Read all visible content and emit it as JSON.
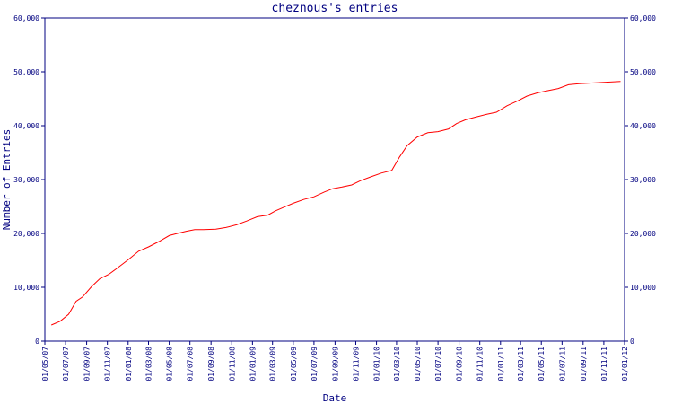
{
  "chart_data": {
    "type": "line",
    "title": "cheznous's entries",
    "xlabel": "Date",
    "ylabel": "Number of Entries",
    "ylim": [
      0,
      60000
    ],
    "y_ticks": [
      "0",
      "10,000",
      "20,000",
      "30,000",
      "40,000",
      "50,000",
      "60,000"
    ],
    "x_ticks": [
      "01/05/07",
      "01/07/07",
      "01/09/07",
      "01/11/07",
      "01/01/08",
      "01/03/08",
      "01/05/08",
      "01/07/08",
      "01/09/08",
      "01/11/08",
      "01/01/09",
      "01/03/09",
      "01/05/09",
      "01/07/09",
      "01/09/09",
      "01/11/09",
      "01/01/10",
      "01/03/10",
      "01/05/10",
      "01/07/10",
      "01/09/10",
      "01/11/10",
      "01/01/11",
      "01/03/11",
      "01/05/11",
      "01/07/11",
      "01/09/11",
      "01/11/11",
      "01/01/12"
    ],
    "grid": false,
    "axis_color": "#000080",
    "series": [
      {
        "color": "#ff0000",
        "x": [
          "2007-05-20",
          "2007-06-15",
          "2007-07-10",
          "2007-08-01",
          "2007-08-20",
          "2007-09-15",
          "2007-10-10",
          "2007-11-05",
          "2007-12-01",
          "2008-01-01",
          "2008-02-01",
          "2008-03-01",
          "2008-04-01",
          "2008-05-01",
          "2008-05-25",
          "2008-06-20",
          "2008-07-15",
          "2008-08-10",
          "2008-09-15",
          "2008-10-15",
          "2008-11-15",
          "2008-12-15",
          "2009-01-15",
          "2009-02-15",
          "2009-03-10",
          "2009-04-05",
          "2009-05-01",
          "2009-06-01",
          "2009-07-01",
          "2009-08-01",
          "2009-08-25",
          "2009-09-20",
          "2009-10-20",
          "2009-11-15",
          "2009-12-15",
          "2010-01-15",
          "2010-02-15",
          "2010-03-10",
          "2010-04-01",
          "2010-05-01",
          "2010-06-01",
          "2010-07-01",
          "2010-08-01",
          "2010-08-25",
          "2010-09-20",
          "2010-10-20",
          "2010-11-20",
          "2010-12-20",
          "2011-01-20",
          "2011-02-20",
          "2011-03-20",
          "2011-04-20",
          "2011-05-20",
          "2011-06-20",
          "2011-07-20",
          "2011-08-20",
          "2011-09-20",
          "2011-10-20",
          "2011-11-20",
          "2011-12-20"
        ],
        "values": [
          3000,
          3700,
          5000,
          7400,
          8200,
          10100,
          11600,
          12400,
          13600,
          15100,
          16700,
          17500,
          18500,
          19600,
          20000,
          20400,
          20700,
          20700,
          20800,
          21100,
          21600,
          22300,
          23100,
          23400,
          24200,
          24900,
          25600,
          26300,
          26800,
          27700,
          28300,
          28600,
          29000,
          29800,
          30500,
          31200,
          31700,
          34200,
          36300,
          37900,
          38700,
          38900,
          39400,
          40400,
          41100,
          41600,
          42100,
          42500,
          43700,
          44600,
          45500,
          46100,
          46500,
          46900,
          47600,
          47800,
          47900,
          48000,
          48100,
          48200
        ]
      }
    ]
  }
}
